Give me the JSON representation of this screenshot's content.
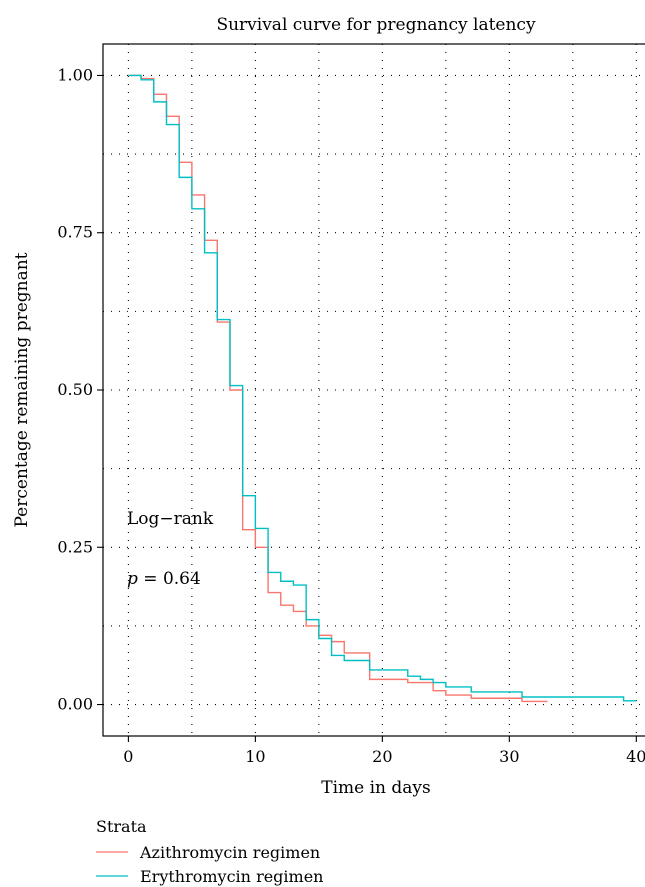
{
  "chart_data": {
    "type": "line",
    "title": "Survival curve for pregnancy latency",
    "xlabel": "Time in days",
    "ylabel": "Percentage remaining pregnant",
    "xlim": [
      -2,
      41
    ],
    "ylim": [
      -0.05,
      1.05
    ],
    "x_ticks": [
      0,
      10,
      20,
      30,
      40
    ],
    "y_ticks": [
      0.0,
      0.25,
      0.5,
      0.75,
      1.0
    ],
    "x_tick_labels": [
      "0",
      "10",
      "20",
      "30",
      "40"
    ],
    "y_tick_labels": [
      "0.00",
      "0.25",
      "0.50",
      "0.75",
      "1.00"
    ],
    "grid": "dotted",
    "annotations": {
      "test": "Log−rank",
      "p_symbol": "p",
      "p_value_text": " = 0.64"
    },
    "legend": {
      "title": "Strata",
      "position": "bottom-left"
    },
    "series": [
      {
        "name": "Azithromycin regimen",
        "color": "#F8766D",
        "step_x": [
          0,
          1,
          2,
          3,
          4,
          5,
          6,
          7,
          8,
          9,
          10,
          11,
          12,
          13,
          14,
          15,
          16,
          17,
          19,
          22,
          24,
          25,
          27,
          31,
          33
        ],
        "step_y": [
          1.0,
          0.995,
          0.97,
          0.935,
          0.862,
          0.81,
          0.738,
          0.608,
          0.5,
          0.278,
          0.25,
          0.178,
          0.158,
          0.148,
          0.125,
          0.11,
          0.1,
          0.082,
          0.04,
          0.035,
          0.022,
          0.015,
          0.01,
          0.005,
          0.005
        ]
      },
      {
        "name": "Erythromycin regimen",
        "color": "#00BFC4",
        "step_x": [
          0,
          1,
          2,
          3,
          4,
          5,
          6,
          7,
          8,
          9,
          10,
          11,
          12,
          13,
          14,
          15,
          16,
          17,
          19,
          22,
          23,
          24,
          25,
          27,
          31,
          39,
          40
        ],
        "step_y": [
          1.0,
          0.993,
          0.958,
          0.922,
          0.838,
          0.788,
          0.718,
          0.612,
          0.507,
          0.332,
          0.28,
          0.21,
          0.196,
          0.19,
          0.135,
          0.105,
          0.078,
          0.07,
          0.055,
          0.045,
          0.04,
          0.035,
          0.028,
          0.02,
          0.012,
          0.006,
          0.006
        ]
      }
    ]
  }
}
